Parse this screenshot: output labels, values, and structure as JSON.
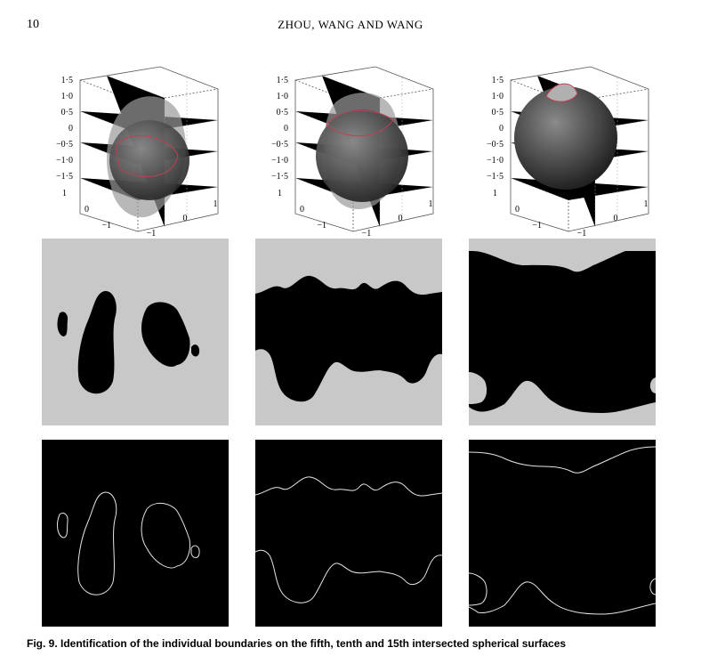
{
  "header": {
    "page_number": "10",
    "running_head": "ZHOU, WANG AND WANG"
  },
  "plot_axes": {
    "z_ticks": [
      "1·5",
      "1·0",
      "0·5",
      "0",
      "−0·5",
      "−1·0",
      "−1·5"
    ],
    "x_ticks": [
      "1",
      "0",
      "−1"
    ],
    "y_ticks": [
      "−1",
      "0",
      "1"
    ]
  },
  "figure": {
    "caption": "Fig. 9.  Identification of the individual boundaries on the fifth, tenth and 15th intersected spherical surfaces",
    "columns": [
      "fifth",
      "tenth",
      "15th"
    ],
    "colors": {
      "region_background": "#c8c8c8",
      "region_fill": "#000000",
      "boundary_background": "#000000",
      "boundary_line": "#e6e6e6",
      "sphere": "#4a4a4a",
      "intersection_curve": "#c04050"
    }
  }
}
